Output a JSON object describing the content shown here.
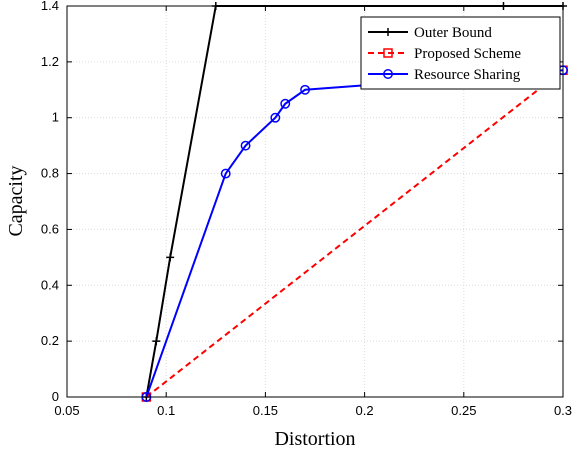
{
  "chart_data": {
    "type": "line",
    "title": "",
    "xlabel": "Distortion",
    "ylabel": "Capacity",
    "xlim": [
      0.05,
      0.3
    ],
    "ylim": [
      0,
      1.4
    ],
    "xticks": [
      0.05,
      0.1,
      0.15,
      0.2,
      0.25,
      0.3
    ],
    "xtick_labels": [
      "0.05",
      "0.1",
      "0.15",
      "0.2",
      "0.25",
      "0.3"
    ],
    "yticks": [
      0,
      0.2,
      0.4,
      0.6,
      0.8,
      1,
      1.2,
      1.4
    ],
    "ytick_labels": [
      "0",
      "0.2",
      "0.4",
      "0.6",
      "0.8",
      "1",
      "1.2",
      "1.4"
    ],
    "grid": true,
    "legend_position": "top-right",
    "series": [
      {
        "name": "Outer Bound",
        "color": "#000000",
        "line_style": "solid",
        "marker": "plus",
        "x": [
          0.09,
          0.095,
          0.102,
          0.125,
          0.27,
          0.3
        ],
        "y": [
          0,
          0.2,
          0.5,
          1.4,
          1.4,
          1.4
        ]
      },
      {
        "name": "Proposed Scheme",
        "color": "#ff0000",
        "line_style": "dashed",
        "marker": "square",
        "x": [
          0.09,
          0.3
        ],
        "y": [
          0,
          1.17
        ]
      },
      {
        "name": "Resource Sharing",
        "color": "#0000ff",
        "line_style": "solid",
        "marker": "circle",
        "x": [
          0.09,
          0.13,
          0.14,
          0.155,
          0.16,
          0.17,
          0.3
        ],
        "y": [
          0,
          0.8,
          0.9,
          1.0,
          1.05,
          1.1,
          1.17
        ]
      }
    ]
  }
}
